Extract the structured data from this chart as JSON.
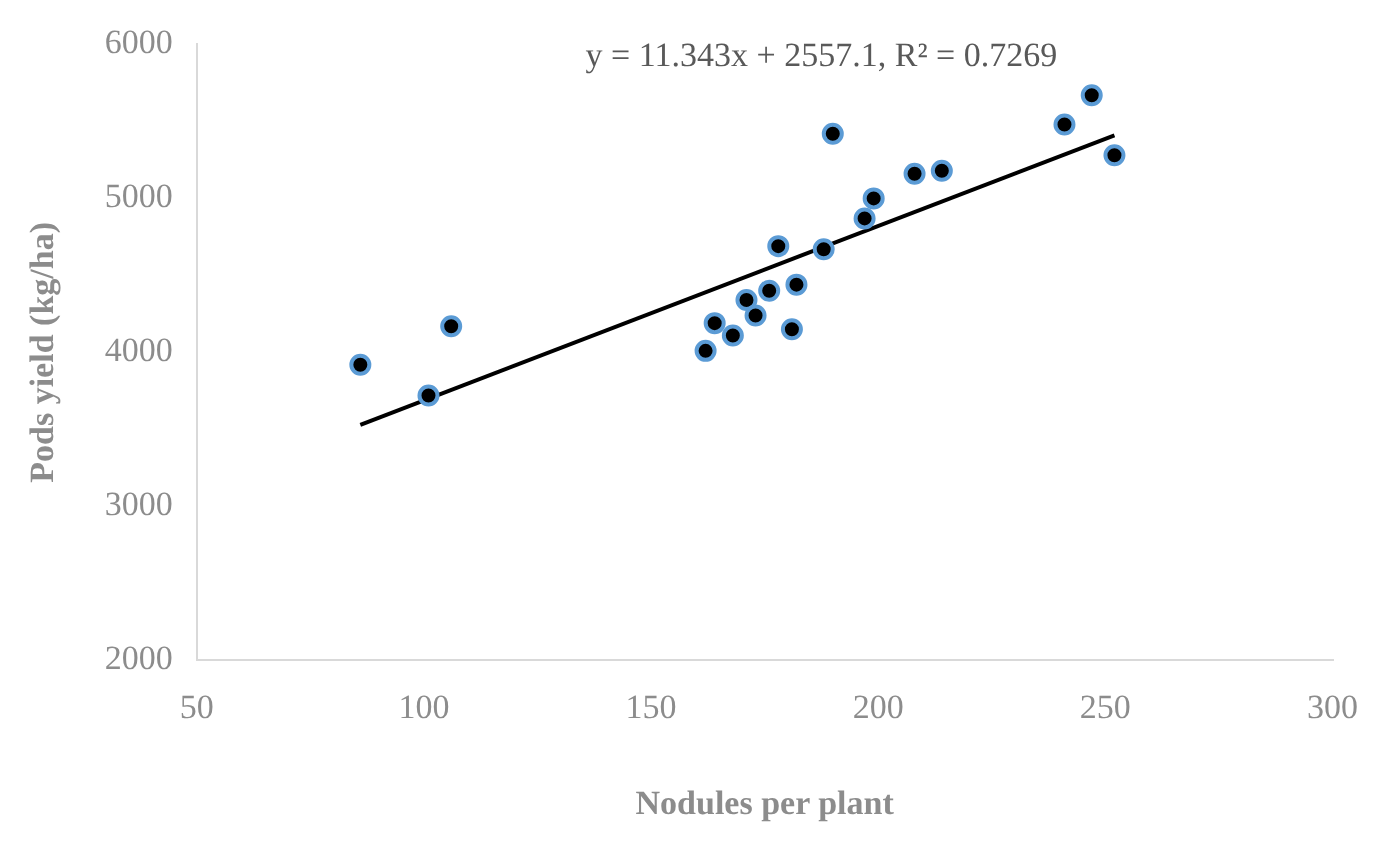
{
  "chart_data": {
    "type": "scatter",
    "xlabel": "Nodules per plant",
    "ylabel": "Pods yield (kg/ha)",
    "annotations": [
      "y = 11.343x + 2557.1, R² = 0.7269"
    ],
    "xlim": [
      50,
      300
    ],
    "xticks": [
      50,
      100,
      150,
      200,
      250,
      300
    ],
    "ylim": [
      2000,
      6000
    ],
    "yticks": [
      2000,
      3000,
      4000,
      5000,
      6000
    ],
    "grid": false,
    "legend": false,
    "marker": "circle",
    "series": [
      {
        "color": "#000000",
        "x": [
          86,
          101,
          106,
          162,
          164,
          168,
          171,
          173,
          176,
          178,
          181,
          182,
          188,
          190,
          197,
          199,
          208,
          214,
          241,
          247,
          252
        ],
        "values": [
          3920,
          3720,
          4170,
          4010,
          4190,
          4110,
          4340,
          4240,
          4400,
          4690,
          4150,
          4440,
          4670,
          5420,
          4870,
          5000,
          5160,
          5180,
          5480,
          5670,
          5280
        ]
      },
      {
        "type": "line",
        "color": "#000000",
        "marker": "none",
        "x": [
          86,
          252
        ],
        "values": [
          3530,
          5410
        ]
      }
    ]
  }
}
